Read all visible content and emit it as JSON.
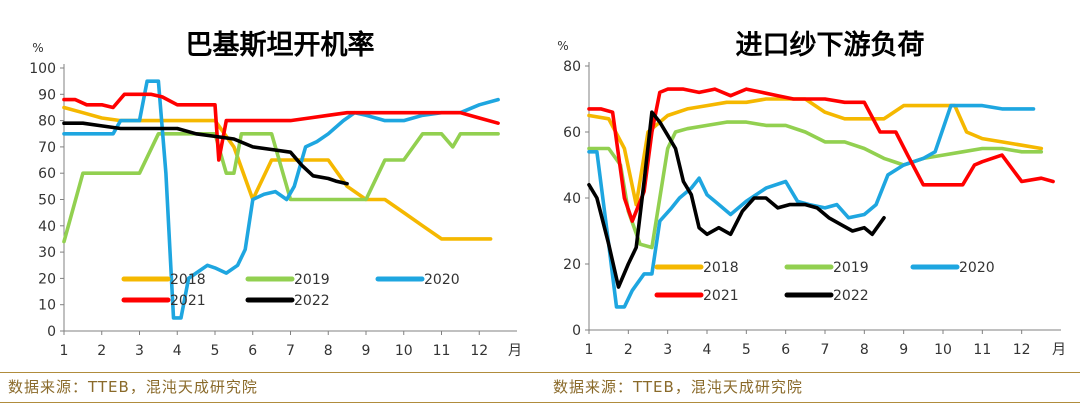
{
  "chart_data": [
    {
      "type": "line",
      "title": "巴基斯坦开机率",
      "yunit": "%",
      "xunit": "月",
      "ylim": [
        0,
        100
      ],
      "yticks": [
        0,
        10,
        20,
        30,
        40,
        50,
        60,
        70,
        80,
        90,
        100
      ],
      "xlim": [
        1,
        13
      ],
      "xticks": [
        1,
        2,
        3,
        4,
        5,
        6,
        7,
        8,
        9,
        10,
        11,
        12
      ],
      "grid": false,
      "legend_position": "bottom-left inside plot",
      "series": [
        {
          "name": "2018",
          "color": "#f5b800",
          "x": [
            1,
            1.5,
            2,
            2.5,
            3,
            3.5,
            4,
            4.4,
            4.8,
            5,
            5.5,
            6,
            6.5,
            7,
            7.5,
            8,
            8.5,
            9,
            9.5,
            10,
            10.5,
            11,
            11.5,
            12,
            12.3
          ],
          "y": [
            85,
            83,
            81,
            80,
            80,
            80,
            80,
            80,
            80,
            80,
            70,
            50,
            65,
            65,
            65,
            65,
            55,
            50,
            50,
            45,
            40,
            35,
            35,
            35,
            35
          ]
        },
        {
          "name": "2019",
          "color": "#92d050",
          "x": [
            1,
            1.5,
            2,
            2.5,
            3,
            3.5,
            4,
            4.5,
            5,
            5.3,
            5.5,
            5.7,
            6,
            6.5,
            7,
            7.5,
            8,
            8.5,
            9,
            9.5,
            10,
            10.5,
            11,
            11.3,
            11.5,
            12,
            12.5
          ],
          "y": [
            34,
            60,
            60,
            60,
            60,
            75,
            75,
            75,
            75,
            60,
            60,
            75,
            75,
            75,
            50,
            50,
            50,
            50,
            50,
            65,
            65,
            75,
            75,
            70,
            75,
            75,
            75
          ]
        },
        {
          "name": "2020",
          "color": "#1ea6e0",
          "x": [
            1,
            1.5,
            2,
            2.3,
            2.5,
            3,
            3.2,
            3.5,
            3.7,
            3.9,
            4.1,
            4.3,
            4.5,
            4.8,
            5,
            5.3,
            5.6,
            5.8,
            6,
            6.3,
            6.6,
            6.9,
            7.1,
            7.4,
            7.7,
            8,
            8.4,
            8.7,
            9,
            9.5,
            10,
            10.5,
            11,
            11.5,
            12,
            12.5
          ],
          "y": [
            75,
            75,
            75,
            75,
            80,
            80,
            95,
            95,
            60,
            5,
            5,
            20,
            22,
            25,
            24,
            22,
            25,
            31,
            50,
            52,
            53,
            50,
            55,
            70,
            72,
            75,
            80,
            83,
            82,
            80,
            80,
            82,
            83,
            83,
            86,
            88
          ]
        },
        {
          "name": "2021",
          "color": "#ff0000",
          "x": [
            1,
            1.3,
            1.6,
            2,
            2.3,
            2.6,
            3,
            3.3,
            3.6,
            4,
            4.3,
            4.6,
            5,
            5.1,
            5.3,
            5.6,
            6,
            6.5,
            7,
            7.5,
            8,
            8.5,
            9,
            9.5,
            10,
            10.5,
            11,
            11.5,
            12,
            12.5
          ],
          "y": [
            88,
            88,
            86,
            86,
            85,
            90,
            90,
            90,
            89,
            86,
            86,
            86,
            86,
            65,
            80,
            80,
            80,
            80,
            80,
            81,
            82,
            83,
            83,
            83,
            83,
            83,
            83,
            83,
            81,
            79
          ]
        },
        {
          "name": "2022",
          "color": "#000000",
          "x": [
            1,
            1.5,
            2,
            2.5,
            3,
            3.5,
            4,
            4.5,
            5,
            5.5,
            6,
            6.5,
            7,
            7.3,
            7.6,
            8,
            8.2,
            8.5
          ],
          "y": [
            79,
            79,
            78,
            77,
            77,
            77,
            77,
            75,
            74,
            73,
            70,
            69,
            68,
            63,
            59,
            58,
            57,
            56
          ]
        }
      ]
    },
    {
      "type": "line",
      "title": "进口纱下游负荷",
      "yunit": "%",
      "xunit": "月",
      "ylim": [
        0,
        80
      ],
      "yticks": [
        0,
        20,
        40,
        60,
        80
      ],
      "xlim": [
        1,
        13
      ],
      "xticks": [
        1,
        2,
        3,
        4,
        5,
        6,
        7,
        8,
        9,
        10,
        11,
        12
      ],
      "grid": false,
      "legend_position": "bottom-left inside plot",
      "series": [
        {
          "name": "2018",
          "color": "#f5b800",
          "x": [
            1,
            1.5,
            1.9,
            2.2,
            2.5,
            3,
            3.5,
            4,
            4.5,
            5,
            5.5,
            6,
            6.5,
            7,
            7.5,
            8,
            8.5,
            9,
            9.5,
            10,
            10.3,
            10.6,
            11,
            11.5,
            12,
            12.5
          ],
          "y": [
            65,
            64,
            55,
            38,
            60,
            65,
            67,
            68,
            69,
            69,
            70,
            70,
            70,
            66,
            64,
            64,
            64,
            68,
            68,
            68,
            68,
            60,
            58,
            57,
            56,
            55
          ]
        },
        {
          "name": "2019",
          "color": "#92d050",
          "x": [
            1,
            1.5,
            1.8,
            2,
            2.3,
            2.6,
            2.8,
            3,
            3.2,
            3.5,
            4,
            4.5,
            5,
            5.5,
            6,
            6.5,
            7,
            7.5,
            8,
            8.5,
            9,
            9.5,
            10,
            10.5,
            11,
            11.5,
            12,
            12.5
          ],
          "y": [
            55,
            55,
            50,
            36,
            26,
            25,
            40,
            55,
            60,
            61,
            62,
            63,
            63,
            62,
            62,
            60,
            57,
            57,
            55,
            52,
            50,
            52,
            53,
            54,
            55,
            55,
            54,
            54
          ]
        },
        {
          "name": "2020",
          "color": "#1ea6e0",
          "x": [
            1,
            1.2,
            1.5,
            1.7,
            1.9,
            2.1,
            2.4,
            2.6,
            2.8,
            3.1,
            3.3,
            3.6,
            3.8,
            4,
            4.2,
            4.6,
            5,
            5.5,
            6,
            6.3,
            6.6,
            7,
            7.3,
            7.6,
            8,
            8.3,
            8.6,
            9,
            9.5,
            9.8,
            10.2,
            10.5,
            11,
            11.5,
            12,
            12.3
          ],
          "y": [
            54,
            54,
            26,
            7,
            7,
            12,
            17,
            17,
            33,
            37,
            40,
            43,
            46,
            41,
            39,
            35,
            39,
            43,
            45,
            39,
            38,
            37,
            38,
            34,
            35,
            38,
            47,
            50,
            52,
            54,
            68,
            68,
            68,
            67,
            67,
            67
          ]
        },
        {
          "name": "2021",
          "color": "#ff0000",
          "x": [
            1,
            1.3,
            1.6,
            1.9,
            2.1,
            2.4,
            2.6,
            2.8,
            3,
            3.4,
            3.8,
            4.2,
            4.6,
            5,
            5.4,
            5.8,
            6.2,
            6.6,
            7,
            7.5,
            8,
            8.4,
            8.8,
            9.1,
            9.5,
            10,
            10.5,
            10.8,
            11,
            11.5,
            12,
            12.5,
            12.8
          ],
          "y": [
            67,
            67,
            66,
            40,
            33,
            42,
            60,
            72,
            73,
            73,
            72,
            73,
            71,
            73,
            72,
            71,
            70,
            70,
            70,
            69,
            69,
            60,
            60,
            53,
            44,
            44,
            44,
            50,
            51,
            53,
            45,
            46,
            45
          ]
        },
        {
          "name": "2022",
          "color": "#000000",
          "x": [
            1,
            1.2,
            1.5,
            1.75,
            2,
            2.2,
            2.4,
            2.6,
            2.8,
            3,
            3.2,
            3.4,
            3.6,
            3.8,
            4,
            4.3,
            4.6,
            4.9,
            5.2,
            5.5,
            5.8,
            6.1,
            6.5,
            6.8,
            7.1,
            7.4,
            7.7,
            8,
            8.2,
            8.5
          ],
          "y": [
            44,
            40,
            26,
            13,
            20,
            25,
            45,
            66,
            63,
            59,
            55,
            45,
            41,
            31,
            29,
            31,
            29,
            36,
            40,
            40,
            37,
            38,
            38,
            37,
            34,
            32,
            30,
            31,
            29,
            34
          ]
        }
      ]
    }
  ],
  "footer": {
    "source_left": "数据来源：TTEB，混沌天成研究院",
    "source_right": "数据来源：TTEB，混沌天成研究院"
  }
}
